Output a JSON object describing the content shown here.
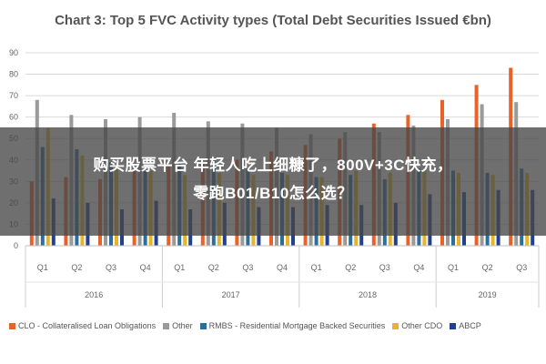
{
  "chart_data": {
    "type": "bar",
    "title": "Chart 3: Top 5 FVC Activity types (Total Debt Securities Issued €bn)",
    "xlabel": "",
    "ylabel": "",
    "ylim": [
      0,
      90
    ],
    "yticks": [
      0,
      10,
      20,
      30,
      40,
      50,
      60,
      70,
      80,
      90
    ],
    "grid": true,
    "legend_position": "bottom",
    "categories": [
      "Q1",
      "Q2",
      "Q3",
      "Q4",
      "Q1",
      "Q2",
      "Q3",
      "Q4",
      "Q1",
      "Q2",
      "Q3",
      "Q4",
      "Q1",
      "Q2",
      "Q3"
    ],
    "groups": [
      {
        "label": "2016",
        "span": 4
      },
      {
        "label": "2017",
        "span": 4
      },
      {
        "label": "2018",
        "span": 4
      },
      {
        "label": "2019",
        "span": 3
      }
    ],
    "series": [
      {
        "name": "CLO - Collateralised Loan Obligations",
        "color": "#e8622a",
        "values": [
          30,
          32,
          31,
          35,
          37,
          38,
          40,
          44,
          47,
          50,
          57,
          61,
          68,
          75,
          83
        ]
      },
      {
        "name": "Other",
        "color": "#9a9a9a",
        "values": [
          68,
          61,
          59,
          60,
          62,
          58,
          57,
          55,
          52,
          53,
          53,
          56,
          59,
          66,
          67
        ]
      },
      {
        "name": "RMBS - Residential Mortgage Backed Securities",
        "color": "#2a6f9c",
        "values": [
          46,
          45,
          39,
          35,
          38,
          40,
          36,
          34,
          32,
          33,
          31,
          36,
          35,
          34,
          36
        ]
      },
      {
        "name": "Other CDO",
        "color": "#e8b428",
        "values": [
          55,
          42,
          36,
          35,
          33,
          34,
          33,
          33,
          32,
          35,
          34,
          35,
          34,
          33,
          34
        ]
      },
      {
        "name": "ABCP",
        "color": "#23408e",
        "values": [
          22,
          20,
          17,
          21,
          17,
          20,
          18,
          18,
          19,
          19,
          20,
          24,
          25,
          26,
          26
        ]
      }
    ]
  },
  "overlay": {
    "line1": "购买股票平台 年轻人吃上细糠了，800V+3C快充，",
    "line2": "零跑B01/B10怎么选？"
  }
}
